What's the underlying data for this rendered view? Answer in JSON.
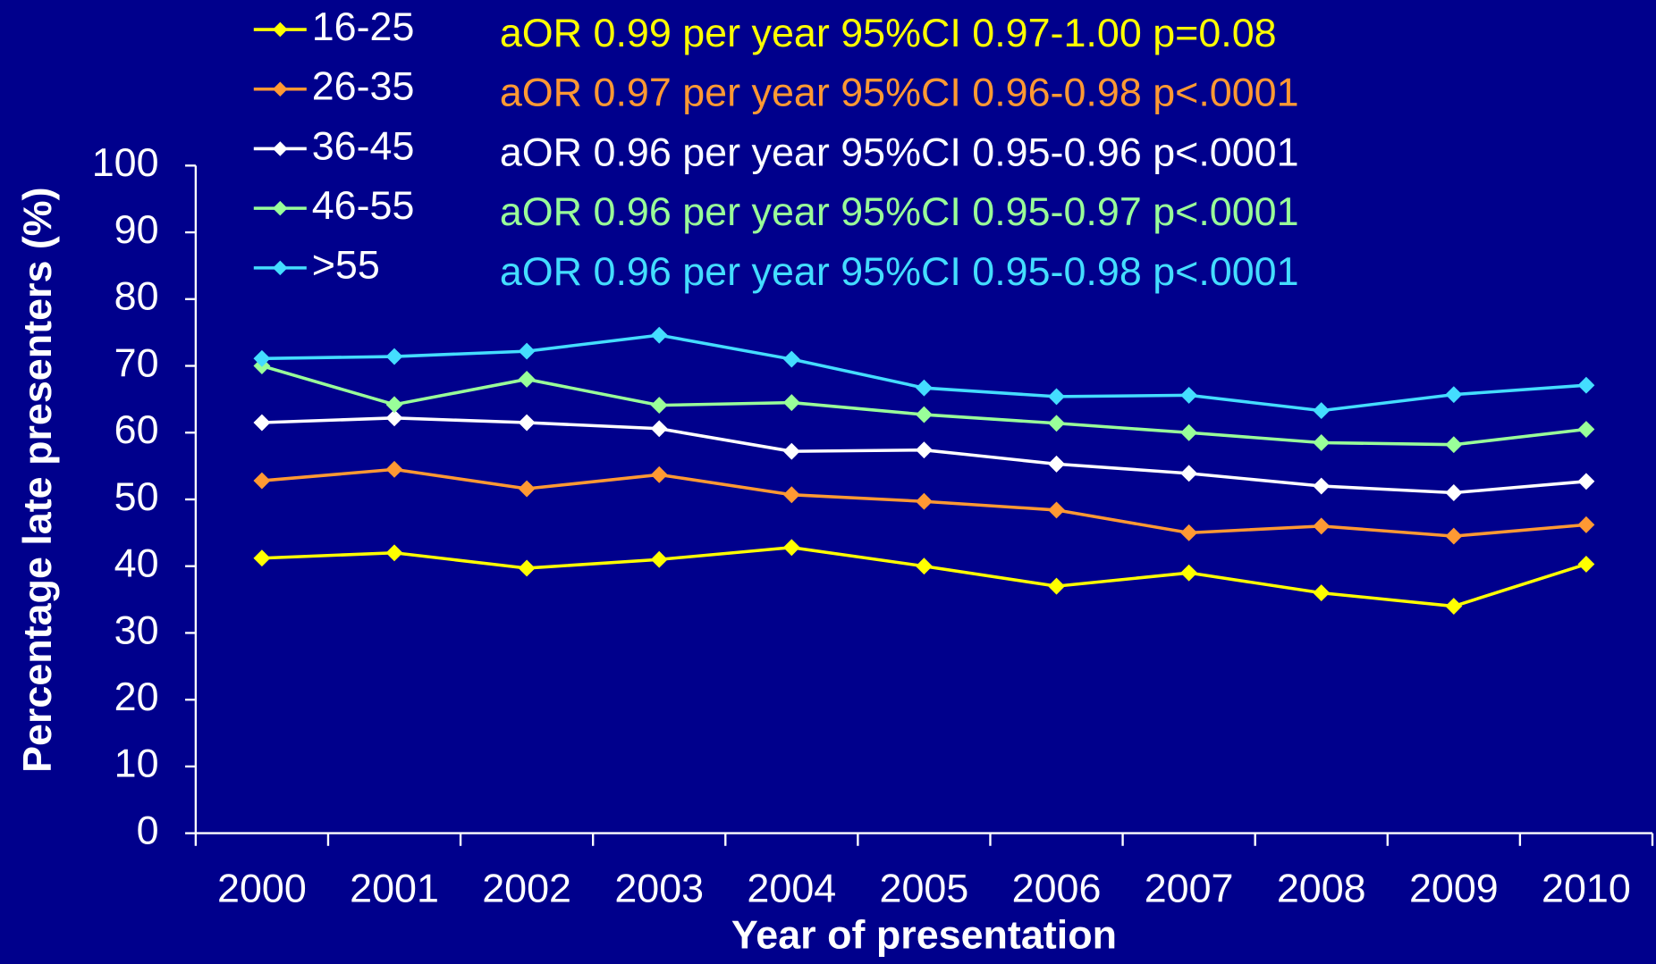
{
  "chart_data": {
    "type": "line",
    "x_label": "Year of presentation",
    "y_label": "Percentage late presenters (%)",
    "categories": [
      "2000",
      "2001",
      "2002",
      "2003",
      "2004",
      "2005",
      "2006",
      "2007",
      "2008",
      "2009",
      "2010"
    ],
    "ylim": [
      0,
      100
    ],
    "yticks": [
      0,
      10,
      20,
      30,
      40,
      50,
      60,
      70,
      80,
      90,
      100
    ],
    "background": "#00008c",
    "series": [
      {
        "name": "16-25",
        "color": "#ffff00",
        "annotation": "aOR 0.99 per year 95%CI 0.97-1.00 p=0.08",
        "values": [
          41.2,
          42,
          39.7,
          41,
          42.8,
          40,
          37,
          39,
          36,
          34,
          40.3
        ]
      },
      {
        "name": "26-35",
        "color": "#ff9933",
        "annotation": "aOR 0.97 per year 95%CI 0.96-0.98 p<.0001",
        "values": [
          52.8,
          54.5,
          51.6,
          53.7,
          50.7,
          49.7,
          48.4,
          45,
          46,
          44.5,
          46.2
        ]
      },
      {
        "name": "36-45",
        "color": "#ffffff",
        "annotation": "aOR 0.96 per year 95%CI 0.95-0.96 p<.0001",
        "values": [
          61.5,
          62.2,
          61.5,
          60.6,
          57.2,
          57.4,
          55.3,
          53.9,
          52,
          51,
          52.7
        ]
      },
      {
        "name": "46-55",
        "color": "#99ff99",
        "annotation": "aOR 0.96 per year 95%CI 0.95-0.97 p<.0001",
        "values": [
          70,
          64.2,
          68,
          64.1,
          64.5,
          62.7,
          61.4,
          60,
          58.5,
          58.2,
          60.5
        ]
      },
      {
        "name": ">55",
        "color": "#44ddff",
        "annotation": "aOR 0.96 per year 95%CI 0.95-0.98 p<.0001",
        "values": [
          71.1,
          71.4,
          72.2,
          74.6,
          71,
          66.7,
          65.4,
          65.6,
          63.3,
          65.7,
          67.1
        ]
      }
    ]
  }
}
